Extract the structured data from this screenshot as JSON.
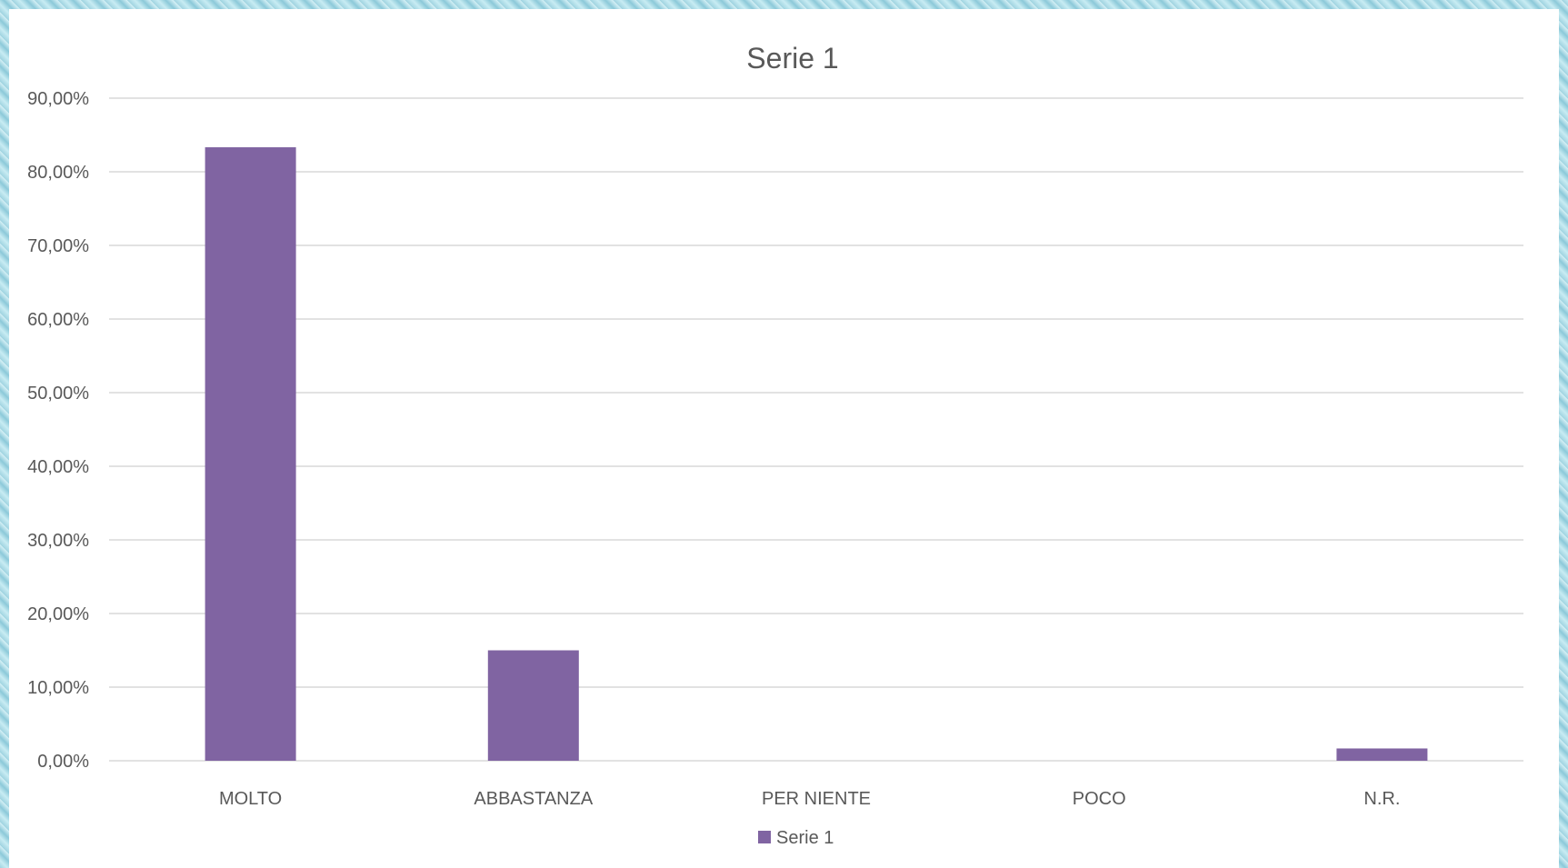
{
  "chart_data": {
    "type": "bar",
    "title": "Serie 1",
    "categories": [
      "MOLTO",
      "ABBASTANZA",
      "PER NIENTE",
      "POCO",
      "N.R."
    ],
    "series": [
      {
        "name": "Serie 1",
        "values": [
          83.33,
          15.0,
          0.0,
          0.0,
          1.67
        ]
      }
    ],
    "ylim": [
      0,
      90
    ],
    "yticks": [
      "0,00%",
      "10,00%",
      "20,00%",
      "30,00%",
      "40,00%",
      "50,00%",
      "60,00%",
      "70,00%",
      "80,00%",
      "90,00%"
    ],
    "grid": true,
    "legend": "bottom",
    "colors": {
      "bar": "#8064a2",
      "grid": "#d9d9d9",
      "text": "#595959"
    }
  }
}
